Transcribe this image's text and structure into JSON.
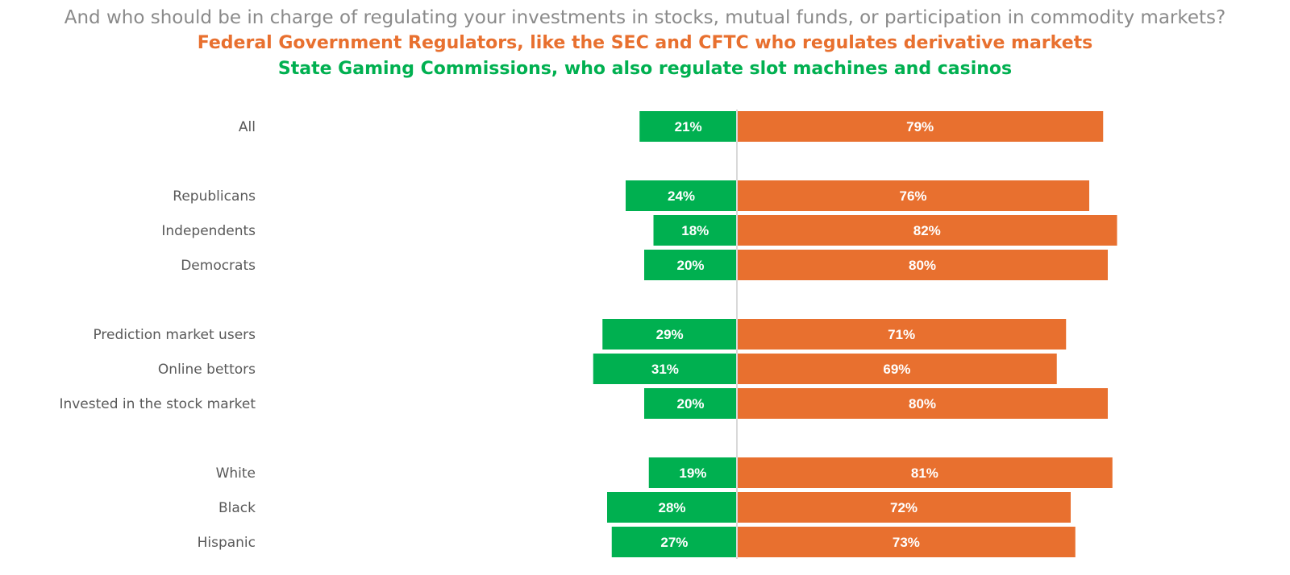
{
  "header": {
    "question": "And who should be in charge of regulating your investments in stocks, mutual funds, or participation in commodity markets?",
    "legend_federal": "Federal Government Regulators, like the SEC and CFTC who regulates derivative markets",
    "legend_state": "State Gaming Commissions, who also regulate slot machines and casinos"
  },
  "colors": {
    "federal": "#e8702f",
    "state": "#00b050",
    "axis": "#d9d9d9"
  },
  "chart_data": {
    "type": "bar",
    "orientation": "horizontal-diverging",
    "title": "And who should be in charge of regulating your investments in stocks, mutual funds, or participation in commodity markets?",
    "categories": [
      "All",
      "Republicans",
      "Independents",
      "Democrats",
      "Prediction market users",
      "Online bettors",
      "Invested in the stock market",
      "White",
      "Black",
      "Hispanic"
    ],
    "groups": [
      [
        "All"
      ],
      [
        "Republicans",
        "Independents",
        "Democrats"
      ],
      [
        "Prediction market users",
        "Online bettors",
        "Invested in the stock market"
      ],
      [
        "White",
        "Black",
        "Hispanic"
      ]
    ],
    "series": [
      {
        "name": "State Gaming Commissions, who also regulate slot machines and casinos",
        "direction": "left",
        "values": [
          21,
          24,
          18,
          20,
          29,
          31,
          20,
          19,
          28,
          27
        ],
        "labels": [
          "21%",
          "24%",
          "18%",
          "20%",
          "29%",
          "31%",
          "20%",
          "19%",
          "28%",
          "27%"
        ]
      },
      {
        "name": "Federal Government Regulators, like the SEC and CFTC who regulates derivative markets",
        "direction": "right",
        "values": [
          79,
          76,
          82,
          80,
          71,
          69,
          80,
          81,
          72,
          73
        ],
        "labels": [
          "79%",
          "76%",
          "82%",
          "80%",
          "71%",
          "69%",
          "80%",
          "81%",
          "72%",
          "73%"
        ]
      }
    ],
    "unit": "%",
    "xlim": [
      0,
      100
    ]
  }
}
